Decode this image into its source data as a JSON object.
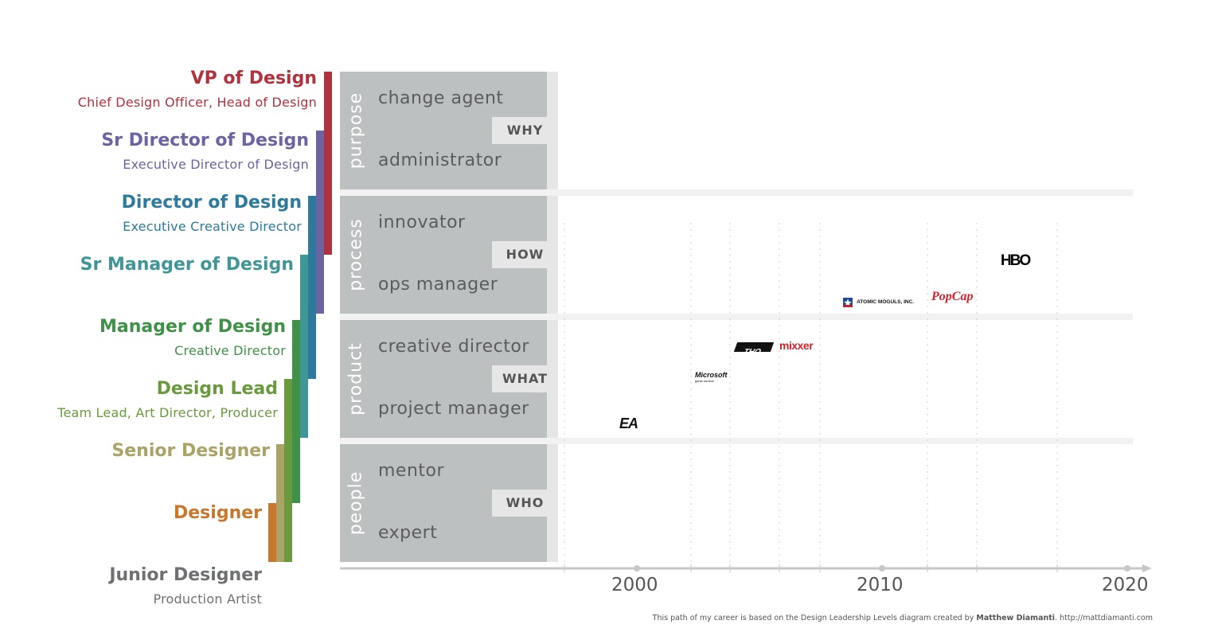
{
  "levels": [
    {
      "title": "VP of Design",
      "subtitle": "Chief Design Officer, Head of Design",
      "color": "#b0323e"
    },
    {
      "title": "Sr Director of Design",
      "subtitle": "Executive Director of Design",
      "color": "#6e63a2"
    },
    {
      "title": "Director of Design",
      "subtitle": "Executive Creative Director",
      "color": "#2c7b9c"
    },
    {
      "title": "Sr Manager of Design",
      "subtitle": "",
      "color": "#3f9697"
    },
    {
      "title": "Manager of Design",
      "subtitle": "Creative Director",
      "color": "#3f9147"
    },
    {
      "title": "Design Lead",
      "subtitle": "Team Lead, Art Director, Producer",
      "color": "#6a9a3e"
    },
    {
      "title": "Senior Designer",
      "subtitle": "",
      "color": "#a9a466"
    },
    {
      "title": "Designer",
      "subtitle": "",
      "color": "#c8772c"
    },
    {
      "title": "Junior Designer",
      "subtitle": "Production Artist",
      "color": "#6f7073"
    }
  ],
  "bands": [
    {
      "label": "purpose",
      "top": "change agent",
      "bottom": "administrator",
      "question": "WHY"
    },
    {
      "label": "process",
      "top": "innovator",
      "bottom": "ops manager",
      "question": "HOW"
    },
    {
      "label": "product",
      "top": "creative director",
      "bottom": "project manager",
      "question": "WHAT"
    },
    {
      "label": "people",
      "top": "mentor",
      "bottom": "expert",
      "question": "WHO"
    }
  ],
  "axis": {
    "ticks": [
      "2000",
      "2010",
      "2020"
    ]
  },
  "companies": [
    {
      "name": "EA",
      "year": 1999.8
    },
    {
      "name": "Microsoft",
      "sub": "game studios",
      "year": 2002.9
    },
    {
      "name": "THQ",
      "year": 2004.9
    },
    {
      "name": "mixxer",
      "year": 2006.8
    },
    {
      "name": "ATOMIC MOGULS, INC.",
      "year": 2009.8
    },
    {
      "name": "PopCap",
      "year": 2012.9
    },
    {
      "name": "HBO",
      "year": 2015.5
    }
  ],
  "footer": {
    "text": "This path of my career is based on the Design Leadership Levels diagram created by ",
    "author": "Matthew Diamanti",
    "url": ". http://mattdiamanti.com"
  }
}
